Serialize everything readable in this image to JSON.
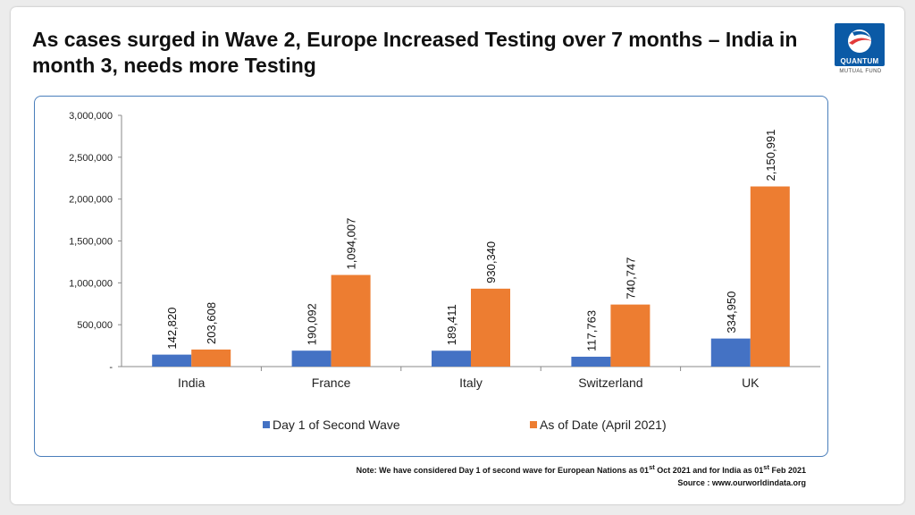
{
  "title": "As cases surged in Wave 2, Europe Increased Testing over 7 months – India in month 3, needs more Testing",
  "logo": {
    "name": "QUANTUM",
    "sub": "MUTUAL FUND"
  },
  "note": {
    "prefix": "Note: We have considered Day 1 of  second wave for European Nations as  01",
    "sup1": "st",
    "middle": " Oct 2021 and for India as 01",
    "sup2": "st",
    "suffix": " Feb 2021"
  },
  "source": "Source : www.ourworldindata.org",
  "colors": {
    "series1": "#4472c4",
    "series2": "#ed7d31",
    "frame": "#4a7ebb"
  },
  "chart_data": {
    "type": "bar",
    "categories": [
      "India",
      "France",
      "Italy",
      "Switzerland",
      "UK"
    ],
    "series": [
      {
        "name": "Day 1 of Second Wave",
        "values": [
          142820,
          190092,
          189411,
          117763,
          334950
        ],
        "labels": [
          "142,820",
          "190,092",
          "189,411",
          "117,763",
          "334,950"
        ]
      },
      {
        "name": "As of Date (April 2021)",
        "values": [
          203608,
          1094007,
          930340,
          740747,
          2150991
        ],
        "labels": [
          "203,608",
          "1,094,007",
          "930,340",
          "740,747",
          "2,150,991"
        ]
      }
    ],
    "ylim": [
      0,
      3000000
    ],
    "yticks": [
      0,
      500000,
      1000000,
      1500000,
      2000000,
      2500000,
      3000000
    ],
    "ytick_labels": [
      "-",
      "500,000",
      "1,000,000",
      "1,500,000",
      "2,000,000",
      "2,500,000",
      "3,000,000"
    ],
    "legend_position": "bottom",
    "grid": false
  }
}
